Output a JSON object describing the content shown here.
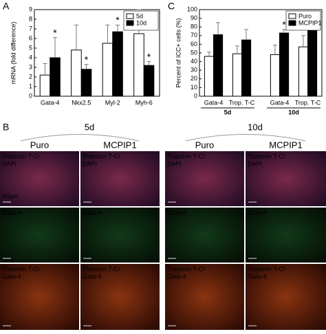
{
  "chart_data": [
    {
      "type": "bar",
      "panel_label": "A",
      "y_label": "mRNA (fold difference)",
      "categories": [
        "Gata-4",
        "Nkx2.5",
        "Myl-2",
        "Myh-6"
      ],
      "series": [
        {
          "name": "5d",
          "color": "#ffffff",
          "values": [
            2.2,
            4.8,
            5.5,
            6.5
          ],
          "errors": [
            1.2,
            2.6,
            1.9,
            2.5
          ],
          "markers": [
            null,
            null,
            null,
            null
          ]
        },
        {
          "name": "10d",
          "color": "#000000",
          "values": [
            4.0,
            2.8,
            6.7,
            3.2
          ],
          "errors": [
            2.1,
            0.5,
            0.7,
            0.4
          ],
          "markers": [
            "*",
            "*",
            "*",
            "*"
          ]
        }
      ],
      "ylim": [
        0,
        9
      ],
      "yticks": [
        0,
        1,
        2,
        3,
        4,
        5,
        6,
        7,
        8,
        9
      ],
      "legend": "top-right"
    },
    {
      "type": "bar",
      "panel_label": "C",
      "y_label": "Percent of ICC+ cells (%)",
      "categories": [
        "Gata-4",
        "Trop. T-C",
        "Gata-4",
        "Trop. T-C"
      ],
      "group_labels": [
        "5d",
        "10d"
      ],
      "series": [
        {
          "name": "Puro",
          "color": "#ffffff",
          "values": [
            46,
            49,
            48,
            57
          ],
          "errors": [
            5,
            9,
            11,
            13
          ],
          "markers": [
            null,
            null,
            null,
            null
          ]
        },
        {
          "name": "MCPIP1",
          "color": "#000000",
          "values": [
            71,
            65,
            73,
            80
          ],
          "errors": [
            14,
            12,
            4,
            10
          ],
          "markers": [
            null,
            null,
            "*",
            null
          ]
        }
      ],
      "ylim": [
        0,
        100
      ],
      "yticks": [
        0,
        10,
        20,
        30,
        40,
        50,
        60,
        70,
        80,
        90,
        100
      ],
      "legend": "top-right"
    }
  ],
  "panel_b": {
    "panel_label": "B",
    "timepoints": [
      "5d",
      "10d"
    ],
    "conditions": [
      "Puro",
      "MCPIP1",
      "Puro",
      "MCPIP1"
    ],
    "scale_bar": "50μm",
    "rows": [
      {
        "line1": "Troponin T-C/",
        "line2": "DAPI"
      },
      {
        "line1": "Gata-4"
      },
      {
        "line1": "Troponin T-C/",
        "line2": "Gata-4"
      }
    ]
  }
}
